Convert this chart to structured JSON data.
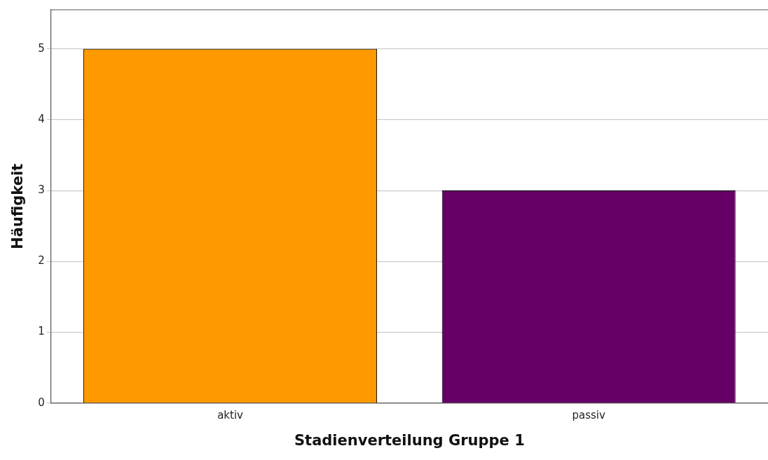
{
  "chart_data": {
    "type": "bar",
    "xlabel": "Stadienverteilung Gruppe 1",
    "ylabel": "Häufigkeit",
    "categories": [
      "aktiv",
      "passiv"
    ],
    "values": [
      5,
      3
    ],
    "colors": [
      "#ff9900",
      "#660066"
    ],
    "ylim": [
      0,
      5.55
    ],
    "yticks": [
      0,
      1,
      2,
      3,
      4,
      5
    ],
    "grid": "y",
    "legend": false
  }
}
